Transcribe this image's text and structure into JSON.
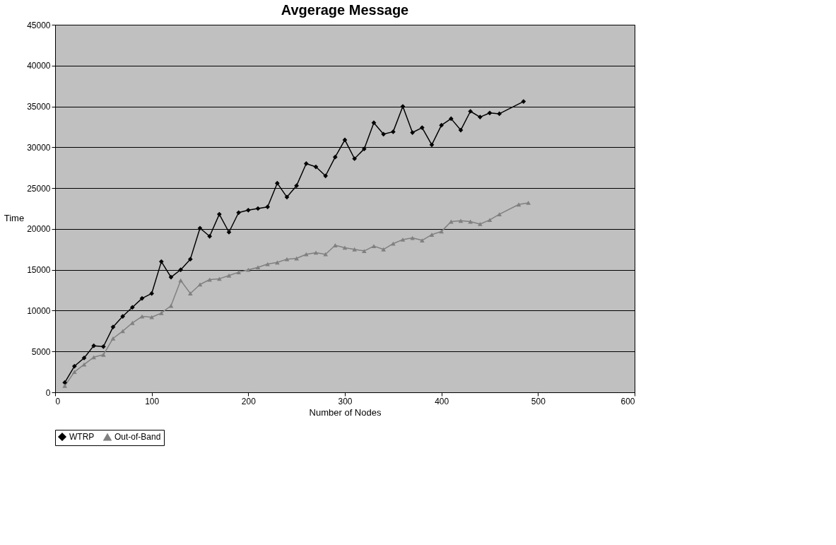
{
  "chart_data": {
    "type": "line",
    "title": "Avgerage Message",
    "xlabel": "Number of Nodes",
    "ylabel": "Time",
    "xlim": [
      0,
      600
    ],
    "xticks": [
      0,
      100,
      200,
      300,
      400,
      500,
      600
    ],
    "ylim": [
      0,
      45000
    ],
    "yticks": [
      0,
      5000,
      10000,
      15000,
      20000,
      25000,
      30000,
      35000,
      40000,
      45000
    ],
    "grid": "y",
    "legend": "bottom",
    "series": [
      {
        "name": "WTRP",
        "color": "#000000",
        "marker": "diamond",
        "x": [
          10,
          20,
          30,
          40,
          50,
          60,
          70,
          80,
          90,
          100,
          110,
          120,
          130,
          140,
          150,
          160,
          170,
          180,
          190,
          200,
          210,
          220,
          230,
          240,
          250,
          260,
          270,
          280,
          290,
          300,
          310,
          320,
          330,
          340,
          350,
          360,
          370,
          380,
          390,
          400,
          410,
          420,
          430,
          440,
          450,
          460,
          485
        ],
        "values": [
          1200,
          3200,
          4200,
          5700,
          5600,
          8000,
          9300,
          10400,
          11500,
          12100,
          16000,
          14100,
          15000,
          16300,
          20100,
          19100,
          21800,
          19600,
          22000,
          22300,
          22500,
          22700,
          25600,
          23900,
          25300,
          28000,
          27600,
          26500,
          28800,
          30900,
          28600,
          29800,
          33000,
          31600,
          31900,
          35000,
          31800,
          32400,
          30300,
          32700,
          33500,
          32100,
          34400,
          33700,
          34200,
          34100,
          35600
        ]
      },
      {
        "name": "Out-of-Band",
        "color": "#808080",
        "marker": "triangle",
        "x": [
          10,
          20,
          30,
          40,
          50,
          60,
          70,
          80,
          90,
          100,
          110,
          120,
          130,
          140,
          150,
          160,
          170,
          180,
          190,
          200,
          210,
          220,
          230,
          240,
          250,
          260,
          270,
          280,
          290,
          300,
          310,
          320,
          330,
          340,
          350,
          360,
          370,
          380,
          390,
          400,
          410,
          420,
          430,
          440,
          450,
          460,
          480,
          490
        ],
        "values": [
          800,
          2500,
          3400,
          4300,
          4600,
          6600,
          7500,
          8500,
          9300,
          9200,
          9700,
          10600,
          13700,
          12100,
          13200,
          13800,
          13900,
          14300,
          14700,
          15000,
          15300,
          15700,
          15900,
          16300,
          16400,
          16900,
          17100,
          16900,
          18000,
          17700,
          17500,
          17300,
          17900,
          17500,
          18200,
          18700,
          18900,
          18600,
          19300,
          19700,
          20900,
          21000,
          20900,
          20600,
          21100,
          21800,
          23000,
          23200
        ]
      }
    ]
  }
}
